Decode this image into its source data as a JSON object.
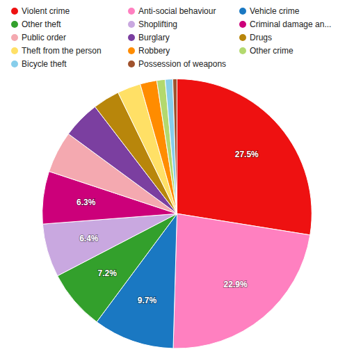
{
  "chart_data": {
    "type": "pie",
    "categories": [
      "Violent crime",
      "Anti-social behaviour",
      "Vehicle crime",
      "Other theft",
      "Shoplifting",
      "Criminal damage an...",
      "Public order",
      "Burglary",
      "Drugs",
      "Theft from the person",
      "Robbery",
      "Other crime",
      "Bicycle theft",
      "Possession of weapons"
    ],
    "values": [
      27.5,
      22.9,
      9.7,
      7.2,
      6.4,
      6.3,
      5.0,
      4.5,
      3.2,
      2.8,
      2.0,
      1.0,
      0.9,
      0.5
    ],
    "colors": [
      "#ee1111",
      "#ff80c0",
      "#1a78c2",
      "#33a02c",
      "#c9a8e0",
      "#cc007a",
      "#f4a9b0",
      "#7b3fa0",
      "#b8860b",
      "#ffe066",
      "#ff8c00",
      "#b3d96e",
      "#87ceeb",
      "#a0522d"
    ],
    "value_labels": [
      "27.5%",
      "22.9%",
      "9.7%",
      "7.2%",
      "6.4%",
      "6.3%",
      null,
      null,
      null,
      null,
      null,
      null,
      null,
      null
    ],
    "data_labels": true,
    "legend": "top"
  }
}
